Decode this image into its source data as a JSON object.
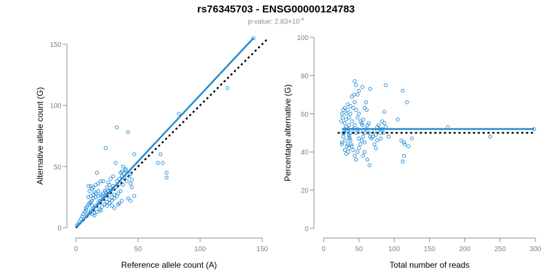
{
  "title": "rs76345703 - ENSG00000124783",
  "subtitle_prefix": "p-value: 2.83×10",
  "subtitle_exponent": "-4",
  "colors": {
    "points": "#1f8ad6",
    "fit_line": "#1f8ad6",
    "reference_line": "#000000",
    "axis": "#8c8c8c",
    "tick_label": "#7f7f7f"
  },
  "chart_data": [
    {
      "type": "scatter",
      "xlabel": "Reference allele count (A)",
      "ylabel": "Alternative allele count (G)",
      "xlim": [
        0,
        150
      ],
      "ylim": [
        0,
        150
      ],
      "xticks": [
        0,
        50,
        100,
        150
      ],
      "yticks": [
        0,
        50,
        100,
        150
      ],
      "grid": false,
      "points": [
        [
          143,
          155
        ],
        [
          122,
          114
        ],
        [
          83,
          93
        ],
        [
          73,
          45
        ],
        [
          73,
          41
        ],
        [
          68,
          60
        ],
        [
          66,
          53
        ],
        [
          70,
          53
        ],
        [
          47,
          60
        ],
        [
          42,
          78
        ],
        [
          33,
          82
        ],
        [
          24,
          65
        ],
        [
          40,
          47
        ],
        [
          36,
          45
        ],
        [
          37,
          46
        ],
        [
          44,
          44
        ],
        [
          39,
          41
        ],
        [
          41,
          38
        ],
        [
          44,
          36
        ],
        [
          45,
          33
        ],
        [
          38,
          35
        ],
        [
          35,
          36
        ],
        [
          32,
          33
        ],
        [
          30,
          32
        ],
        [
          28,
          31
        ],
        [
          26,
          30
        ],
        [
          24,
          29
        ],
        [
          22,
          28
        ],
        [
          20,
          27
        ],
        [
          18,
          26
        ],
        [
          16,
          25
        ],
        [
          14,
          24
        ],
        [
          13,
          22
        ],
        [
          12,
          21
        ],
        [
          11,
          20
        ],
        [
          10,
          19
        ],
        [
          9,
          17
        ],
        [
          8,
          16
        ],
        [
          8,
          14
        ],
        [
          7,
          13
        ],
        [
          6,
          11
        ],
        [
          5,
          9
        ],
        [
          4,
          7
        ],
        [
          3,
          5
        ],
        [
          2,
          3
        ],
        [
          1,
          2
        ],
        [
          10,
          34
        ],
        [
          12,
          34
        ],
        [
          14,
          33
        ],
        [
          16,
          35
        ],
        [
          18,
          36
        ],
        [
          20,
          38
        ],
        [
          22,
          38
        ],
        [
          17,
          45
        ],
        [
          26,
          37
        ],
        [
          28,
          40
        ],
        [
          30,
          42
        ],
        [
          32,
          53
        ],
        [
          38,
          50
        ],
        [
          40,
          48
        ],
        [
          43,
          42
        ],
        [
          45,
          39
        ],
        [
          36,
          30
        ],
        [
          34,
          28
        ],
        [
          31,
          27
        ],
        [
          29,
          25
        ],
        [
          27,
          23
        ],
        [
          25,
          21
        ],
        [
          23,
          19
        ],
        [
          21,
          17
        ],
        [
          19,
          15
        ],
        [
          17,
          13
        ],
        [
          15,
          12
        ],
        [
          13,
          11
        ],
        [
          12,
          14
        ],
        [
          14,
          16
        ],
        [
          16,
          18
        ],
        [
          18,
          20
        ],
        [
          20,
          22
        ],
        [
          22,
          24
        ],
        [
          24,
          26
        ],
        [
          26,
          28
        ],
        [
          28,
          30
        ],
        [
          30,
          34
        ],
        [
          33,
          38
        ],
        [
          35,
          40
        ],
        [
          37,
          42
        ],
        [
          39,
          44
        ],
        [
          25,
          18
        ],
        [
          27,
          20
        ],
        [
          29,
          22
        ],
        [
          31,
          24
        ],
        [
          33,
          26
        ],
        [
          35,
          20
        ],
        [
          37,
          22
        ],
        [
          42,
          24
        ],
        [
          44,
          22
        ],
        [
          47,
          26
        ],
        [
          20,
          14
        ],
        [
          15,
          10
        ],
        [
          11,
          12
        ],
        [
          9,
          10
        ],
        [
          13,
          18
        ],
        [
          19,
          22
        ],
        [
          21,
          26
        ],
        [
          23,
          30
        ],
        [
          25,
          33
        ],
        [
          27,
          35
        ],
        [
          29,
          18
        ],
        [
          31,
          16
        ],
        [
          34,
          19
        ],
        [
          18,
          30
        ],
        [
          16,
          28
        ],
        [
          14,
          27
        ],
        [
          12,
          26
        ],
        [
          10,
          25
        ],
        [
          11,
          30
        ],
        [
          13,
          32
        ],
        [
          15,
          29
        ]
      ],
      "fit": [
        [
          1,
          1
        ],
        [
          143,
          155
        ]
      ],
      "reference": [
        [
          0,
          0
        ],
        [
          154,
          154
        ]
      ]
    },
    {
      "type": "scatter",
      "xlabel": "Total number of reads",
      "ylabel": "Percentage alternative (G)",
      "xlim": [
        0,
        300
      ],
      "ylim": [
        0,
        100
      ],
      "xticks": [
        0,
        50,
        100,
        150,
        200,
        250,
        300
      ],
      "yticks": [
        0,
        20,
        40,
        60,
        80,
        100
      ],
      "grid": false,
      "points": [
        [
          298,
          52
        ],
        [
          236,
          48
        ],
        [
          176,
          53
        ],
        [
          112,
          72
        ],
        [
          118,
          66
        ],
        [
          115,
          44
        ],
        [
          120,
          43
        ],
        [
          114,
          45
        ],
        [
          110,
          46
        ],
        [
          114,
          38
        ],
        [
          112,
          35
        ],
        [
          125,
          47
        ],
        [
          105,
          57
        ],
        [
          88,
          75
        ],
        [
          86,
          61
        ],
        [
          86,
          55
        ],
        [
          83,
          56
        ],
        [
          83,
          52
        ],
        [
          80,
          50
        ],
        [
          78,
          54
        ],
        [
          76,
          53
        ],
        [
          74,
          49
        ],
        [
          72,
          44
        ],
        [
          68,
          47
        ],
        [
          66,
          48
        ],
        [
          64,
          50
        ],
        [
          64,
          55
        ],
        [
          61,
          62
        ],
        [
          60,
          66
        ],
        [
          58,
          63
        ],
        [
          58,
          40
        ],
        [
          56,
          38
        ],
        [
          55,
          54
        ],
        [
          52,
          56
        ],
        [
          50,
          60
        ],
        [
          48,
          58
        ],
        [
          46,
          62
        ],
        [
          44,
          66
        ],
        [
          43,
          70
        ],
        [
          42,
          63
        ],
        [
          40,
          69
        ],
        [
          38,
          60
        ],
        [
          38,
          64
        ],
        [
          36,
          54
        ],
        [
          36,
          58
        ],
        [
          35,
          52
        ],
        [
          34,
          62
        ],
        [
          34,
          65
        ],
        [
          32,
          60
        ],
        [
          32,
          57
        ],
        [
          30,
          55
        ],
        [
          30,
          52
        ],
        [
          28,
          50
        ],
        [
          28,
          48
        ],
        [
          26,
          45
        ],
        [
          26,
          44
        ],
        [
          27,
          58
        ],
        [
          30,
          63
        ],
        [
          31,
          46
        ],
        [
          33,
          43
        ],
        [
          35,
          40
        ],
        [
          36,
          49
        ],
        [
          37,
          47
        ],
        [
          38,
          46
        ],
        [
          39,
          44
        ],
        [
          40,
          43
        ],
        [
          42,
          41
        ],
        [
          44,
          38
        ],
        [
          46,
          36
        ],
        [
          48,
          40
        ],
        [
          50,
          42
        ],
        [
          52,
          44
        ],
        [
          54,
          46
        ],
        [
          56,
          48
        ],
        [
          58,
          50
        ],
        [
          60,
          52
        ],
        [
          62,
          54
        ],
        [
          44,
          77
        ],
        [
          46,
          75
        ],
        [
          48,
          70
        ],
        [
          50,
          72
        ],
        [
          55,
          74
        ],
        [
          66,
          73
        ],
        [
          62,
          36
        ],
        [
          65,
          33
        ],
        [
          70,
          48
        ],
        [
          72,
          51
        ],
        [
          74,
          42
        ],
        [
          76,
          46
        ],
        [
          79,
          52
        ],
        [
          81,
          47
        ],
        [
          85,
          50
        ],
        [
          88,
          53
        ],
        [
          92,
          48
        ],
        [
          42,
          52
        ],
        [
          44,
          54
        ],
        [
          46,
          50
        ],
        [
          48,
          52
        ],
        [
          50,
          47
        ],
        [
          40,
          56
        ],
        [
          38,
          50
        ],
        [
          36,
          48
        ],
        [
          34,
          51
        ],
        [
          32,
          53
        ],
        [
          29,
          50
        ],
        [
          25,
          56
        ],
        [
          26,
          60
        ],
        [
          28,
          62
        ],
        [
          30,
          41
        ],
        [
          32,
          39
        ],
        [
          34,
          44
        ],
        [
          36,
          42
        ],
        [
          52,
          51
        ],
        [
          54,
          55
        ],
        [
          56,
          57
        ],
        [
          58,
          45
        ]
      ],
      "fit": [
        [
          26,
          52
        ],
        [
          298,
          52
        ]
      ],
      "reference": [
        [
          20,
          50
        ],
        [
          298,
          50
        ]
      ]
    }
  ]
}
